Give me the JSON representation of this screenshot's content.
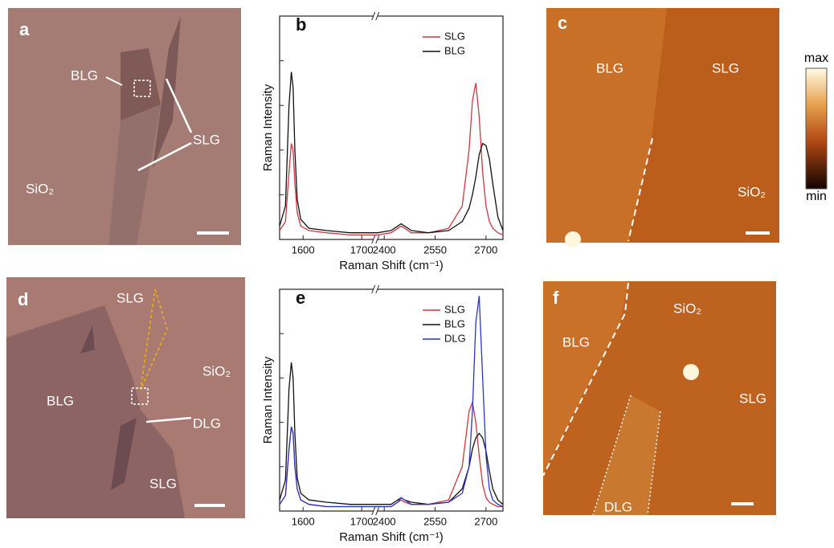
{
  "chart_data": [
    {
      "type": "line",
      "panel": "b",
      "x_label": "Raman Shift (cm⁻¹)",
      "y_label": "Raman Intensity",
      "x": [
        1560,
        1570,
        1576,
        1580,
        1583,
        1586,
        1590,
        1596,
        1610,
        1640,
        1680,
        1720,
        2380,
        2420,
        2440,
        2450,
        2460,
        2480,
        2530,
        2590,
        2630,
        2650,
        2660,
        2670,
        2680,
        2690,
        2700,
        2710,
        2720,
        2735,
        2750
      ],
      "xlim": [
        1560,
        2750
      ],
      "x_break": [
        1720,
        2380
      ],
      "xticks": [
        1600,
        1700,
        2400,
        2550,
        2700
      ],
      "ylim": [
        0,
        1
      ],
      "legend": "upper right",
      "series": [
        {
          "name": "SLG",
          "color": "#d0353f",
          "values": [
            0.04,
            0.08,
            0.3,
            0.43,
            0.4,
            0.25,
            0.12,
            0.06,
            0.04,
            0.03,
            0.02,
            0.02,
            0.02,
            0.03,
            0.05,
            0.06,
            0.05,
            0.03,
            0.03,
            0.05,
            0.15,
            0.4,
            0.62,
            0.7,
            0.55,
            0.3,
            0.15,
            0.08,
            0.05,
            0.03,
            0.02
          ]
        },
        {
          "name": "BLG",
          "color": "#111111",
          "values": [
            0.06,
            0.15,
            0.6,
            0.75,
            0.68,
            0.4,
            0.18,
            0.09,
            0.05,
            0.04,
            0.03,
            0.03,
            0.03,
            0.04,
            0.06,
            0.07,
            0.06,
            0.04,
            0.03,
            0.04,
            0.08,
            0.14,
            0.2,
            0.28,
            0.38,
            0.43,
            0.42,
            0.36,
            0.25,
            0.1,
            0.04
          ]
        }
      ]
    },
    {
      "type": "line",
      "panel": "e",
      "x_label": "Raman Shift (cm⁻¹)",
      "y_label": "Raman Intensity",
      "x": [
        1560,
        1570,
        1576,
        1580,
        1583,
        1586,
        1590,
        1596,
        1610,
        1640,
        1680,
        1720,
        2380,
        2420,
        2440,
        2450,
        2460,
        2480,
        2530,
        2590,
        2630,
        2650,
        2660,
        2670,
        2680,
        2690,
        2700,
        2710,
        2720,
        2735,
        2750
      ],
      "xlim": [
        1560,
        2750
      ],
      "x_break": [
        1720,
        2380
      ],
      "xticks": [
        1600,
        1700,
        2400,
        2550,
        2700
      ],
      "ylim": [
        0,
        1
      ],
      "legend": "upper right",
      "series": [
        {
          "name": "SLG",
          "color": "#d0353f",
          "values": [
            0.03,
            0.07,
            0.28,
            0.38,
            0.35,
            0.2,
            0.1,
            0.05,
            0.03,
            0.02,
            0.02,
            0.02,
            0.02,
            0.02,
            0.04,
            0.05,
            0.04,
            0.03,
            0.03,
            0.05,
            0.2,
            0.45,
            0.49,
            0.4,
            0.25,
            0.12,
            0.06,
            0.04,
            0.03,
            0.02,
            0.02
          ]
        },
        {
          "name": "BLG",
          "color": "#111111",
          "values": [
            0.05,
            0.14,
            0.55,
            0.67,
            0.6,
            0.35,
            0.15,
            0.08,
            0.05,
            0.04,
            0.03,
            0.03,
            0.03,
            0.03,
            0.05,
            0.06,
            0.05,
            0.04,
            0.03,
            0.04,
            0.1,
            0.2,
            0.28,
            0.33,
            0.35,
            0.33,
            0.27,
            0.18,
            0.1,
            0.05,
            0.03
          ]
        },
        {
          "name": "DLG",
          "color": "#2a35c8",
          "values": [
            0.03,
            0.07,
            0.28,
            0.38,
            0.35,
            0.2,
            0.1,
            0.05,
            0.03,
            0.02,
            0.02,
            0.02,
            0.02,
            0.02,
            0.04,
            0.06,
            0.05,
            0.03,
            0.03,
            0.04,
            0.08,
            0.2,
            0.45,
            0.85,
            0.97,
            0.6,
            0.25,
            0.1,
            0.05,
            0.03,
            0.02
          ]
        }
      ]
    }
  ],
  "panels": {
    "a": {
      "letter": "a",
      "labels": [
        "BLG",
        "SLG",
        "SiO₂"
      ]
    },
    "c": {
      "letter": "c",
      "labels": [
        "BLG",
        "SLG",
        "SiO₂"
      ],
      "colorbar": [
        "max",
        "min"
      ]
    },
    "d": {
      "letter": "d",
      "labels": [
        "SLG",
        "SiO₂",
        "BLG",
        "DLG",
        "SLG"
      ]
    },
    "f": {
      "letter": "f",
      "labels": [
        "BLG",
        "SiO₂",
        "SLG",
        "DLG"
      ]
    }
  }
}
